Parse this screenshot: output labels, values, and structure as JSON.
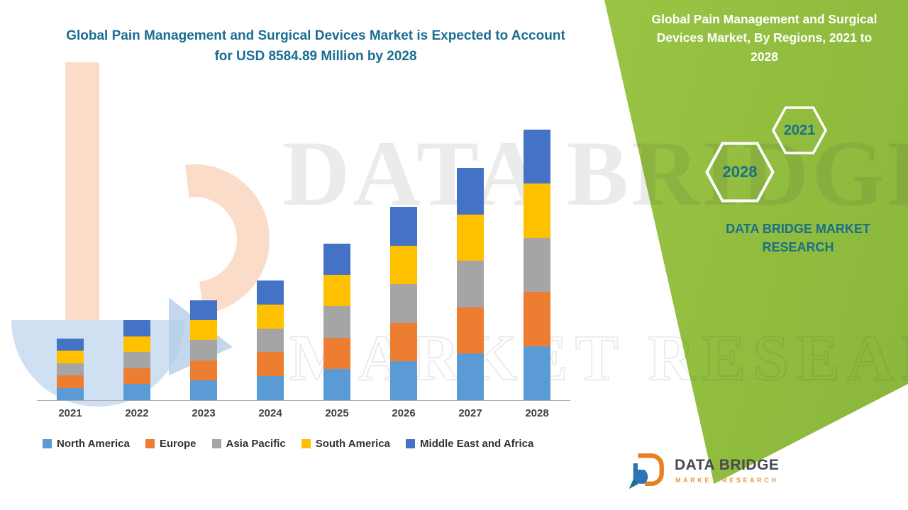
{
  "main_title": {
    "text": "Global Pain Management and Surgical Devices Market is Expected to Account for USD 8584.89 Million by 2028"
  },
  "side_panel": {
    "title": "Global Pain Management and Surgical Devices Market, By Regions, 2021 to 2028",
    "hex_back_year": "2021",
    "hex_front_year": "2028",
    "brand_line": "DATA BRIDGE MARKET RESEARCH",
    "colors": {
      "panel_green": "#9BC544",
      "panel_green_dark": "#89B63B",
      "teal_text": "#1A7087"
    }
  },
  "watermark": {
    "line1": "DATA BRIDGE",
    "line2": "MARKET RESEARCH"
  },
  "footer_logo": {
    "name": "DATA BRIDGE",
    "sub": "MARKET RESEARCH"
  },
  "chart_data": {
    "type": "bar",
    "stacked": true,
    "title": "Global Pain Management and Surgical Devices Market, By Regions, 2021 to 2028",
    "unit": "USD Million",
    "xlabel": "",
    "ylabel": "",
    "value_axis_visible": false,
    "grid": false,
    "legend_position": "bottom",
    "categories": [
      "2021",
      "2022",
      "2023",
      "2024",
      "2025",
      "2026",
      "2027",
      "2028"
    ],
    "series": [
      {
        "name": "North America",
        "color": "#5B9BD5",
        "values": [
          390,
          508,
          634,
          760,
          994,
          1226,
          1474,
          1716.97
        ]
      },
      {
        "name": "Europe",
        "color": "#ED7D31",
        "values": [
          390,
          508,
          634,
          760,
          994,
          1226,
          1474,
          1716.98
        ]
      },
      {
        "name": "Asia Pacific",
        "color": "#A5A5A5",
        "values": [
          390,
          508,
          634,
          760,
          994,
          1226,
          1474,
          1716.98
        ]
      },
      {
        "name": "South America",
        "color": "#FFC000",
        "values": [
          390,
          508,
          634,
          760,
          994,
          1226,
          1474,
          1716.98
        ]
      },
      {
        "name": "Middle East and Africa",
        "color": "#4472C4",
        "values": [
          390,
          508,
          634,
          760,
          994,
          1226,
          1474,
          1716.98
        ]
      }
    ],
    "totals": [
      1950,
      2540,
      3170,
      3800,
      4970,
      6130,
      7370,
      8584.89
    ],
    "highlight_value": "USD 8584.89 Million by 2028"
  }
}
